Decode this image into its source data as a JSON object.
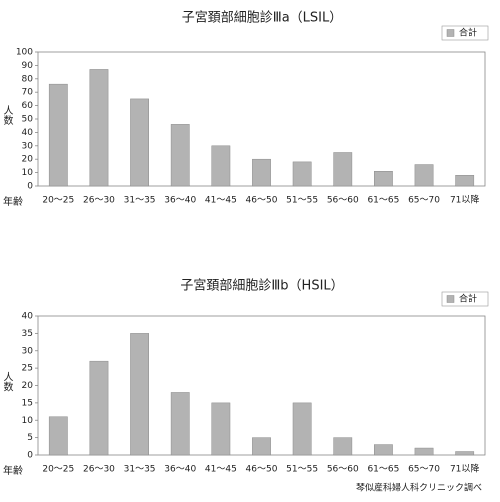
{
  "chart_data": [
    {
      "type": "bar",
      "title": "子宮頚部細胞診Ⅲa（LSIL）",
      "y_label": "人数",
      "x_label": "年齢",
      "categories": [
        "20～25",
        "26～30",
        "31～35",
        "36～40",
        "41～45",
        "46～50",
        "51～55",
        "56～60",
        "61～65",
        "65～70",
        "71以降"
      ],
      "series": [
        {
          "name": "合計",
          "color": "#b3b3b3",
          "values": [
            76,
            87,
            65,
            46,
            30,
            20,
            18,
            25,
            11,
            16,
            8
          ]
        }
      ],
      "ylim": [
        0,
        100
      ],
      "yticks": [
        0,
        10,
        20,
        30,
        40,
        50,
        60,
        70,
        80,
        90,
        100
      ],
      "grid": false,
      "legend": "top-right"
    },
    {
      "type": "bar",
      "title": "子宮頚部細胞診Ⅲb（HSIL）",
      "y_label": "人数",
      "x_label": "年齢",
      "categories": [
        "20～25",
        "26～30",
        "31～35",
        "36～40",
        "41～45",
        "46～50",
        "51～55",
        "56～60",
        "61～65",
        "65～70",
        "71以降"
      ],
      "series": [
        {
          "name": "合計",
          "color": "#b3b3b3",
          "values": [
            11,
            27,
            35,
            18,
            15,
            5,
            15,
            5,
            3,
            2,
            1
          ]
        }
      ],
      "ylim": [
        0,
        40
      ],
      "yticks": [
        0,
        5,
        10,
        15,
        20,
        25,
        30,
        35,
        40
      ],
      "grid": false,
      "legend": "top-right"
    }
  ],
  "source": "琴似産科婦人科クリニック調べ"
}
